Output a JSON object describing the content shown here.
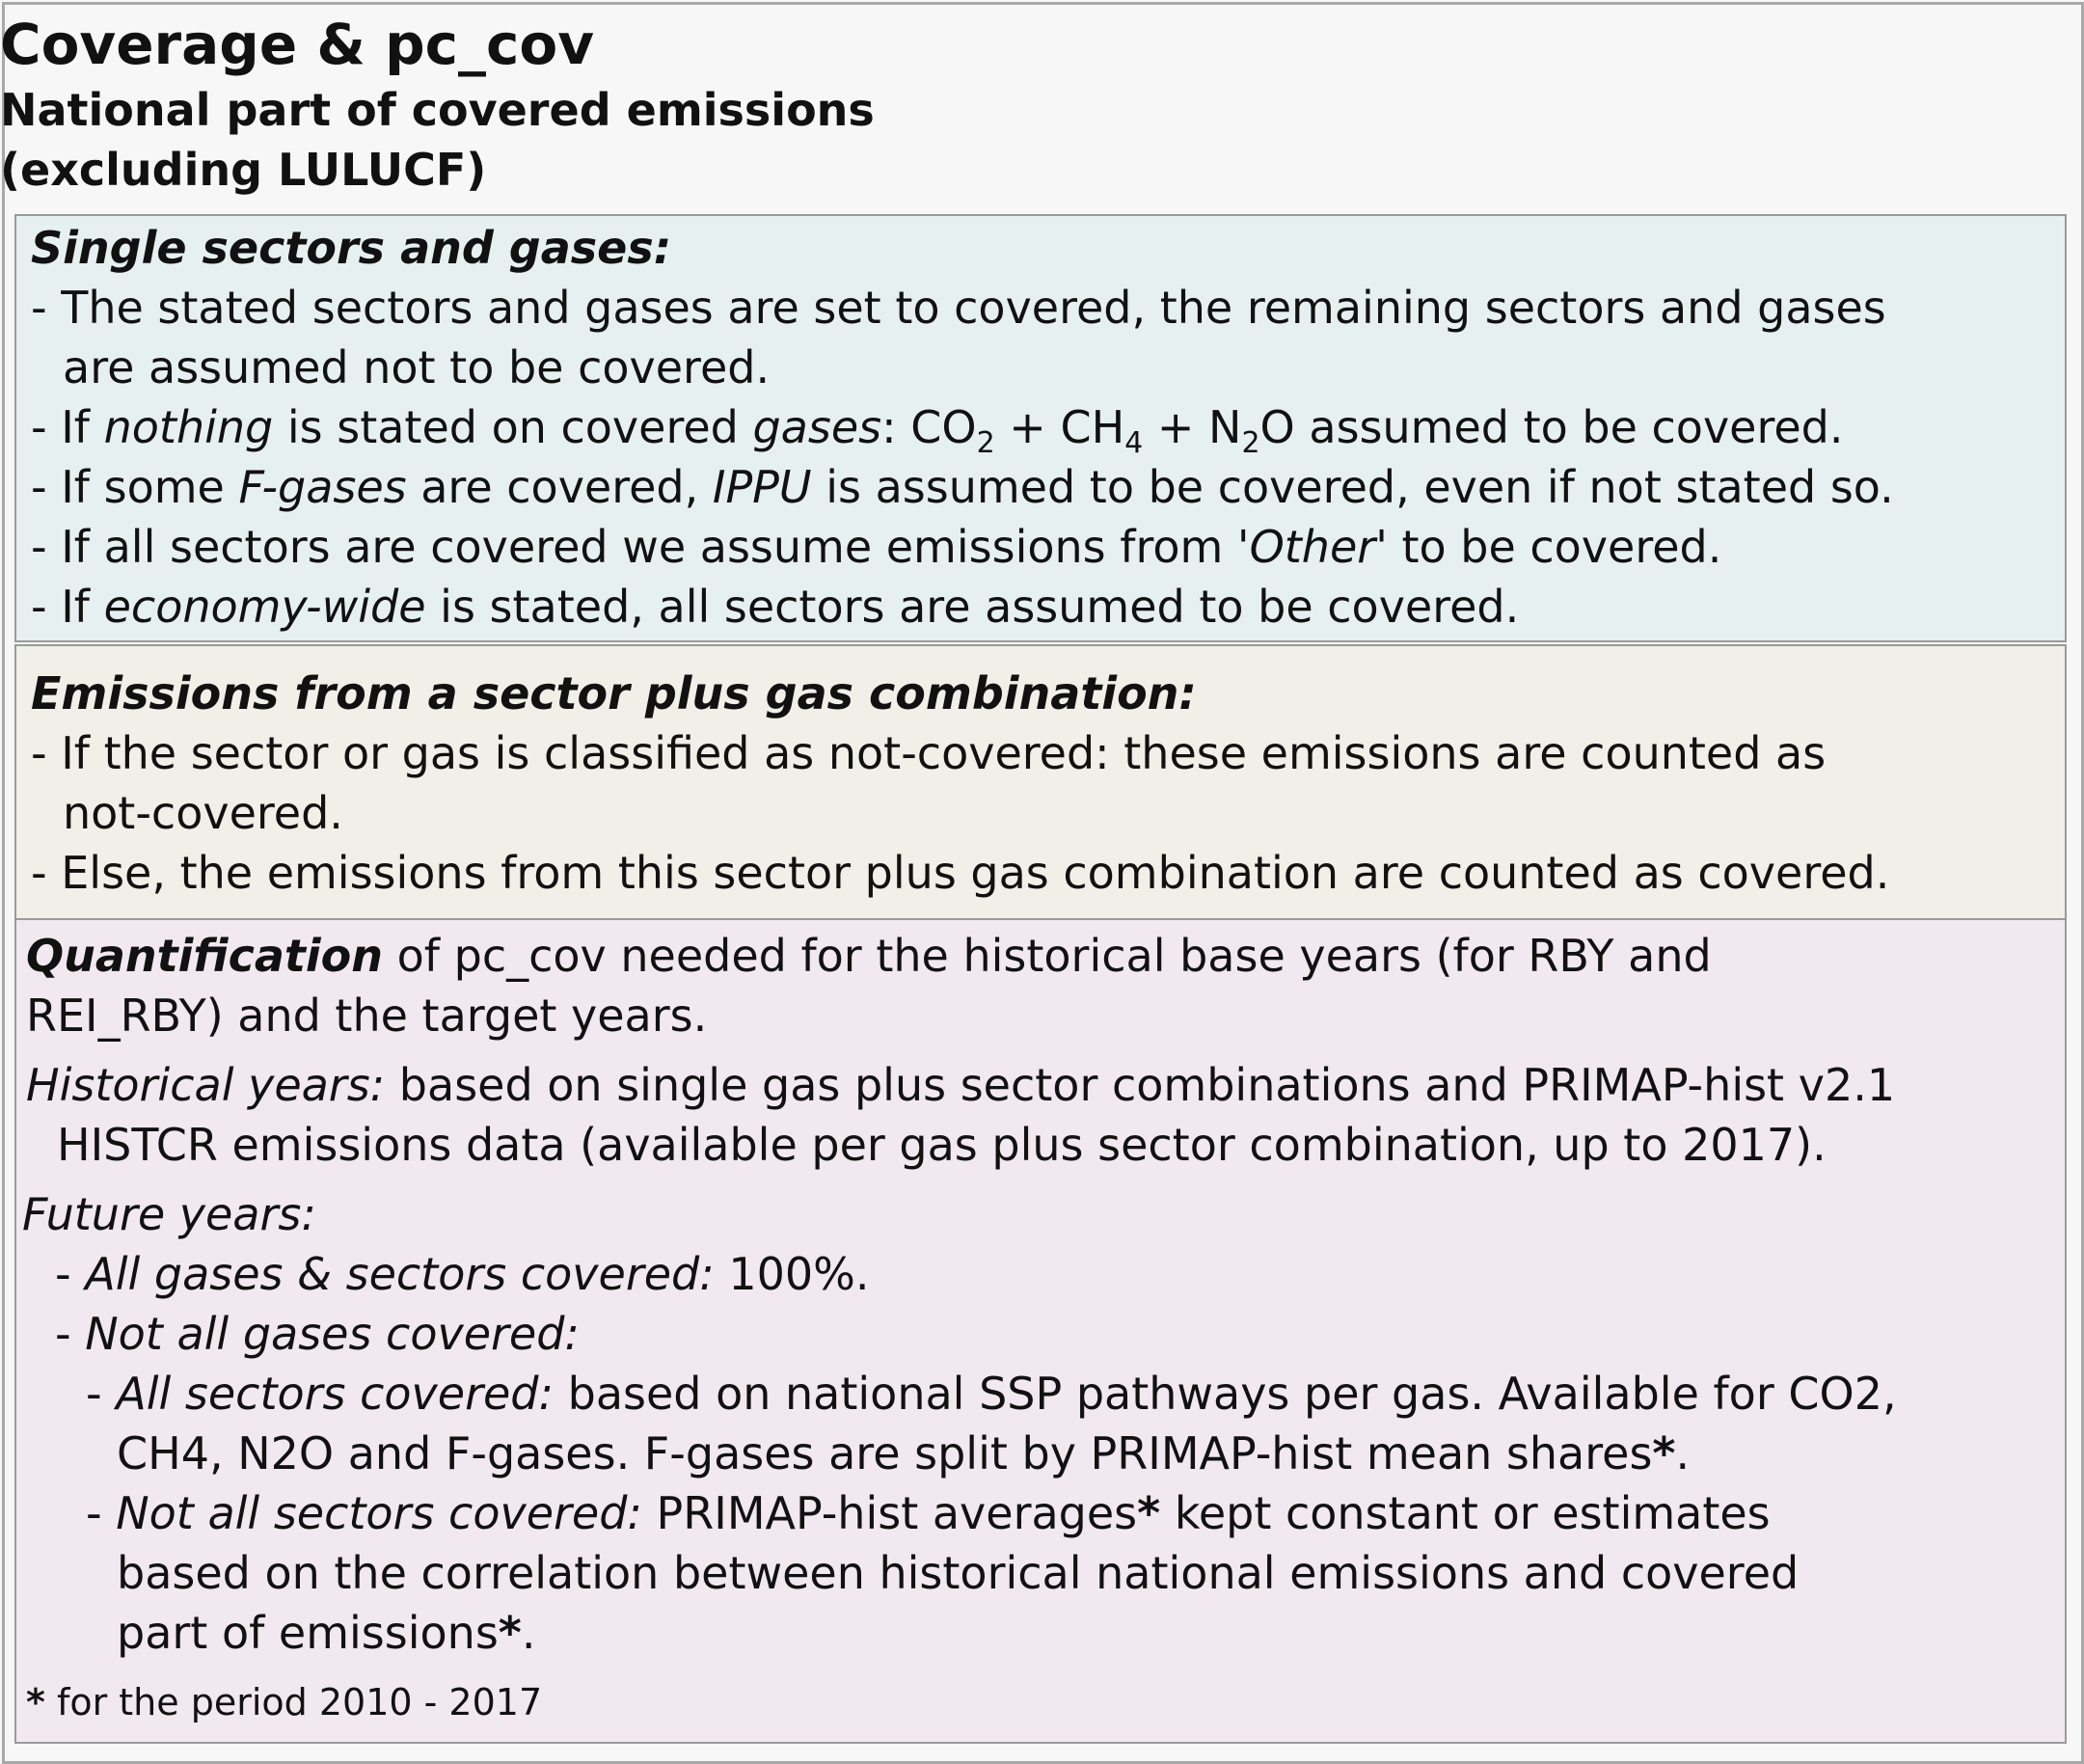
{
  "header": {
    "title": "Coverage & pc_cov",
    "subtitle_line1": "National part of covered emissions",
    "subtitle_line2": "(excluding LULUCF)"
  },
  "single": {
    "heading": "Single sectors and gases:",
    "r1a": "- The stated sectors and gases are set to covered, the remaining sectors and gases",
    "r1b": "are assumed not to be covered.",
    "r2_pre": "- If ",
    "r2_nothing": "nothing",
    "r2_mid": " is stated on covered ",
    "r2_gases": "gases",
    "r2_colon": ": CO",
    "r2_s2": "2",
    "r2_ch": " + CH",
    "r2_s4": "4",
    "r2_n": " + N",
    "r2_s2b": "2",
    "r2_end": "O assumed to be covered.",
    "r3_pre": "- If some ",
    "r3_fgases": "F-gases",
    "r3_mid": " are covered, ",
    "r3_ippu": "IPPU",
    "r3_end": " is assumed to be covered, even if not stated so.",
    "r4_pre": "- If all sectors are covered we assume emissions from '",
    "r4_other": "Other",
    "r4_end": "' to be covered.",
    "r5_pre": "- If ",
    "r5_econ": "economy-wide",
    "r5_end": " is stated, all sectors are assumed to be covered."
  },
  "combo": {
    "heading": "Emissions from a sector plus gas combination:",
    "r1a": "- If the sector or gas is classified as not-covered: these emissions are counted as",
    "r1b": "not-covered.",
    "r2": "- Else, the emissions from this sector plus gas combination are counted as covered."
  },
  "quant": {
    "q_bold": "Quantification",
    "q1_rest": " of pc_cov needed for the historical base years (for RBY and",
    "q2": "REI_RBY) and the target years.",
    "hist_label": "Historical years:",
    "hist_rest": " based on single gas plus sector combinations and PRIMAP-hist v2.1",
    "hist_b": "HISTCR emissions data (available per gas plus sector combination, up to 2017).",
    "future_label": "Future years:",
    "fa_dash": "- ",
    "fa_label": "All gases & sectors covered:",
    "fa_rest": " 100%.",
    "fb_dash": "- ",
    "fb_label": "Not all gases covered:",
    "fc_dash": "- ",
    "fc_label": "All sectors covered:",
    "fc_rest": " based on national SSP pathways per gas. Available for CO2,",
    "fc_b": "CH4, N2O and F-gases. F-gases are split by PRIMAP-hist mean shares",
    "star1": "*",
    "fc_dot": ".",
    "fd_dash": "- ",
    "fd_label": "Not all sectors covered:",
    "fd_rest": " PRIMAP-hist averages",
    "star2": "*",
    "fd_rest2": " kept constant or estimates",
    "fd_b": "based on the correlation between historical national emissions and covered",
    "fd_c": "part of emissions",
    "star3": "*",
    "fd_dot": ".",
    "fn_star": "*",
    "fn_text": " for the period 2010 - 2017"
  }
}
